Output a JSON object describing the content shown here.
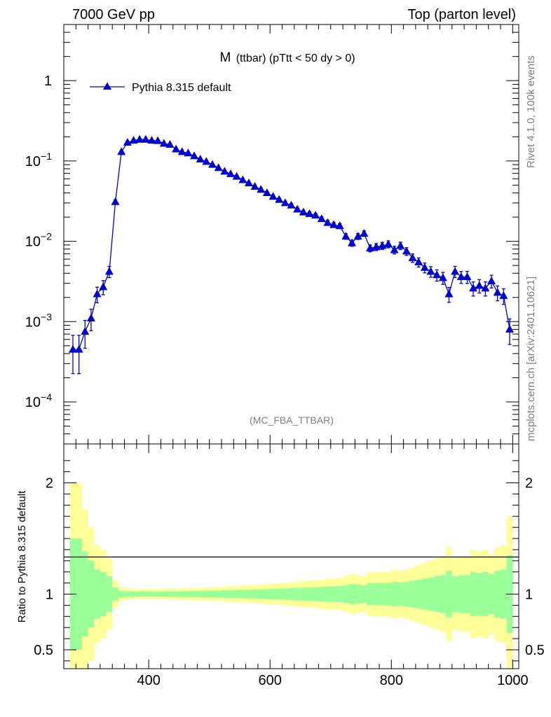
{
  "header": {
    "left_label": "7000 GeV pp",
    "right_label": "Top (parton level)"
  },
  "side_labels": {
    "rivet": "Rivet 4.1.0,  100k events",
    "mcplots": "mcplots.cern.ch [arXiv:2401.10621]"
  },
  "main_plot": {
    "title_main": "M",
    "title_sub": "(ttbar) (pTtt < 50 dy > 0)",
    "watermark": "(MC_FBA_TTBAR)",
    "y_tick_labels": [
      {
        "base": "1",
        "exp": "",
        "value": 1
      },
      {
        "base": "10",
        "exp": "−1",
        "value": 0.1
      },
      {
        "base": "10",
        "exp": "−2",
        "value": 0.01
      },
      {
        "base": "10",
        "exp": "−3",
        "value": 0.001
      },
      {
        "base": "10",
        "exp": "−4",
        "value": 0.0001
      }
    ]
  },
  "ratio_plot": {
    "ylabel": "Ratio to Pythia 8.315 default",
    "y_tick_labels": [
      {
        "label": "2",
        "value": 2
      },
      {
        "label": "1",
        "value": 1
      },
      {
        "label": "0.5",
        "value": 0.5
      }
    ],
    "x_tick_labels": [
      {
        "label": "400",
        "value": 400
      },
      {
        "label": "600",
        "value": 600
      },
      {
        "label": "800",
        "value": 800
      },
      {
        "label": "1000",
        "value": 1000
      }
    ]
  },
  "colors": {
    "series": "#0000cc",
    "band_inner": "#99ff99",
    "band_outer": "#ffff99",
    "axis": "#000000",
    "grey_text": "#7f7f7f"
  },
  "chart_data": {
    "type": "line",
    "title": "M (ttbar) (pTtt < 50 dy > 0)",
    "xlabel": "",
    "ylabel": "",
    "yscale": "log",
    "xlim": [
      260,
      1010
    ],
    "ylim": [
      3e-05,
      5
    ],
    "ratio_ylim": [
      0.33,
      2.35
    ],
    "legend_position": "top-left",
    "series": [
      {
        "name": "Pythia 8.315 default",
        "marker": "triangle-up",
        "x": [
          275,
          285,
          295,
          305,
          315,
          325,
          335,
          345,
          355,
          365,
          375,
          385,
          395,
          405,
          415,
          425,
          435,
          445,
          455,
          465,
          475,
          485,
          495,
          505,
          515,
          525,
          535,
          545,
          555,
          565,
          575,
          585,
          595,
          605,
          615,
          625,
          635,
          645,
          655,
          665,
          675,
          685,
          695,
          705,
          715,
          725,
          735,
          745,
          755,
          765,
          775,
          785,
          795,
          805,
          815,
          825,
          835,
          845,
          855,
          865,
          875,
          885,
          895,
          905,
          915,
          925,
          935,
          945,
          955,
          965,
          975,
          985,
          995
        ],
        "y": [
          0.00045,
          0.00045,
          0.00075,
          0.0011,
          0.0022,
          0.0027,
          0.0042,
          0.031,
          0.13,
          0.17,
          0.18,
          0.185,
          0.185,
          0.18,
          0.178,
          0.165,
          0.16,
          0.14,
          0.13,
          0.125,
          0.115,
          0.105,
          0.098,
          0.09,
          0.082,
          0.074,
          0.069,
          0.064,
          0.058,
          0.053,
          0.048,
          0.044,
          0.04,
          0.036,
          0.033,
          0.03,
          0.028,
          0.025,
          0.023,
          0.022,
          0.021,
          0.019,
          0.017,
          0.016,
          0.0155,
          0.0115,
          0.0095,
          0.0115,
          0.0125,
          0.0082,
          0.0085,
          0.0088,
          0.0092,
          0.0078,
          0.0088,
          0.0075,
          0.0062,
          0.0055,
          0.0047,
          0.0042,
          0.0038,
          0.0035,
          0.0022,
          0.0042,
          0.0036,
          0.0036,
          0.0026,
          0.0028,
          0.0026,
          0.0032,
          0.0023,
          0.0021,
          0.0008
        ],
        "rel_err": [
          0.5,
          0.5,
          0.38,
          0.3,
          0.22,
          0.2,
          0.16,
          0.06,
          0.03,
          0.025,
          0.023,
          0.022,
          0.022,
          0.022,
          0.022,
          0.023,
          0.024,
          0.025,
          0.026,
          0.027,
          0.028,
          0.029,
          0.03,
          0.031,
          0.032,
          0.034,
          0.035,
          0.036,
          0.038,
          0.039,
          0.041,
          0.043,
          0.045,
          0.047,
          0.049,
          0.051,
          0.053,
          0.056,
          0.058,
          0.06,
          0.062,
          0.065,
          0.068,
          0.07,
          0.072,
          0.08,
          0.09,
          0.085,
          0.08,
          0.1,
          0.1,
          0.1,
          0.1,
          0.11,
          0.105,
          0.11,
          0.12,
          0.13,
          0.14,
          0.15,
          0.16,
          0.17,
          0.21,
          0.16,
          0.17,
          0.17,
          0.2,
          0.19,
          0.2,
          0.18,
          0.21,
          0.22,
          0.35
        ]
      }
    ]
  }
}
